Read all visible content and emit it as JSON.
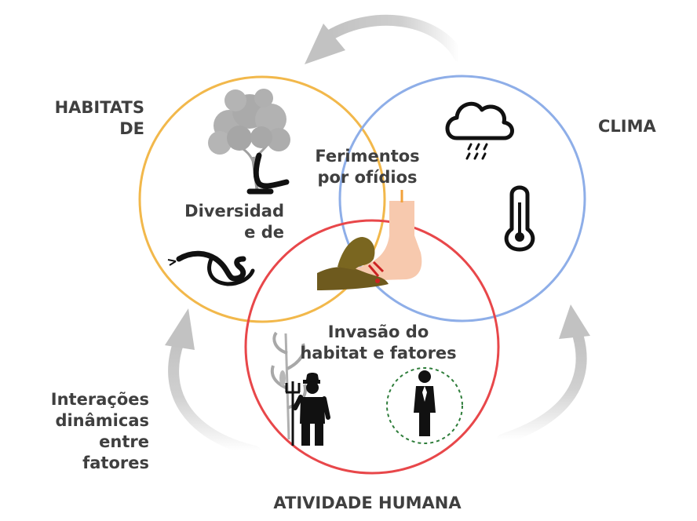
{
  "labels": {
    "habitats": [
      "HABITATS",
      "DE"
    ],
    "clima": "CLIMA",
    "ferimentos": [
      "Ferimentos",
      "por ofídios"
    ],
    "diversidade": [
      "Diversidad",
      "e de"
    ],
    "invasao": [
      "Invasão do",
      "habitat e fatores"
    ],
    "interacoes": [
      "Interações",
      "dinâmicas entre",
      "fatores"
    ],
    "atividade": "ATIVIDADE HUMANA"
  },
  "colors": {
    "habitat_circle": "#f2b84b",
    "climate_circle": "#8eaee8",
    "human_circle": "#e8474a",
    "arrows": "#c6c6c6",
    "text": "#3f3f3f",
    "icon": "#111111",
    "tree": "#a9a9a9",
    "skin": "#f7c9ae",
    "dashed_circle": "#2e7d3a"
  },
  "icons": [
    "tree-icon",
    "snake-icon",
    "snake-bite-icon",
    "rain-cloud-icon",
    "thermometer-icon",
    "corn-plant-icon",
    "farmer-icon",
    "businessman-icon"
  ]
}
